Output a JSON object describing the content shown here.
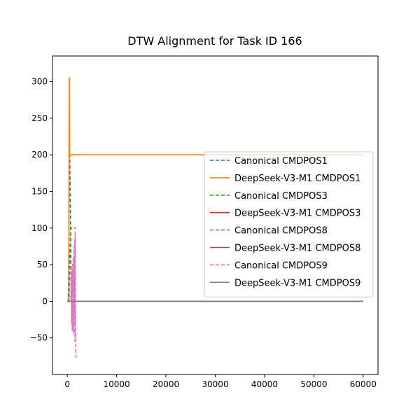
{
  "chart_data": {
    "type": "line",
    "title": "DTW Alignment for Task ID 166",
    "xlabel": "",
    "ylabel": "",
    "xlim": [
      -3000,
      63000
    ],
    "ylim": [
      -100,
      335
    ],
    "xticks": [
      0,
      10000,
      20000,
      30000,
      40000,
      50000,
      60000
    ],
    "xtick_labels": [
      "0",
      "10000",
      "20000",
      "30000",
      "40000",
      "50000",
      "60000"
    ],
    "yticks": [
      -50,
      0,
      50,
      100,
      150,
      200,
      250,
      300
    ],
    "ytick_labels": [
      "−50",
      "0",
      "50",
      "100",
      "150",
      "200",
      "250",
      "300"
    ],
    "grid": false,
    "legend_position": "center-right",
    "series": [
      {
        "name": "Canonical CMDPOS1",
        "color": "#1f77b4",
        "style": "dashed",
        "x": [
          0,
          200,
          300,
          400,
          500,
          600,
          800
        ],
        "y": [
          0,
          0,
          60,
          230,
          200,
          150,
          0
        ]
      },
      {
        "name": "DeepSeek-V3-M1 CMDPOS1",
        "color": "#ff7f0e",
        "style": "solid",
        "x": [
          0,
          300,
          350,
          400,
          450,
          500,
          60000
        ],
        "y": [
          0,
          0,
          150,
          305,
          305,
          200,
          200
        ]
      },
      {
        "name": "Canonical CMDPOS3",
        "color": "#2ca02c",
        "style": "dashed",
        "x": [
          0,
          350,
          500,
          700,
          900,
          1100,
          1700
        ],
        "y": [
          0,
          0,
          60,
          100,
          100,
          100,
          100
        ]
      },
      {
        "name": "DeepSeek-V3-M1 CMDPOS3",
        "color": "#d62728",
        "style": "solid",
        "x": [
          0,
          60000
        ],
        "y": [
          0,
          0
        ]
      },
      {
        "name": "Canonical CMDPOS8",
        "color": "#9467bd",
        "style": "dashed",
        "x": [
          0,
          700,
          800,
          900,
          1000,
          1100,
          1200,
          1300,
          1400
        ],
        "y": [
          0,
          0,
          30,
          -30,
          40,
          -40,
          20,
          -20,
          0
        ]
      },
      {
        "name": "DeepSeek-V3-M1 CMDPOS8",
        "color": "#8c564b",
        "style": "solid",
        "x": [
          0,
          60000
        ],
        "y": [
          0,
          0
        ]
      },
      {
        "name": "Canonical CMDPOS9",
        "color": "#e377c2",
        "style": "dashed",
        "x": [
          0,
          700,
          800,
          850,
          900,
          1000,
          1050,
          1100,
          1200,
          1300,
          1350,
          1400,
          1500,
          1550,
          1600,
          1700,
          1750
        ],
        "y": [
          0,
          0,
          35,
          -30,
          45,
          -40,
          50,
          -35,
          60,
          -45,
          75,
          -30,
          85,
          -55,
          95,
          -60,
          -80
        ]
      },
      {
        "name": "DeepSeek-V3-M1 CMDPOS9",
        "color": "#7f7f7f",
        "style": "solid",
        "x": [
          0,
          60000
        ],
        "y": [
          0,
          0
        ]
      }
    ]
  }
}
